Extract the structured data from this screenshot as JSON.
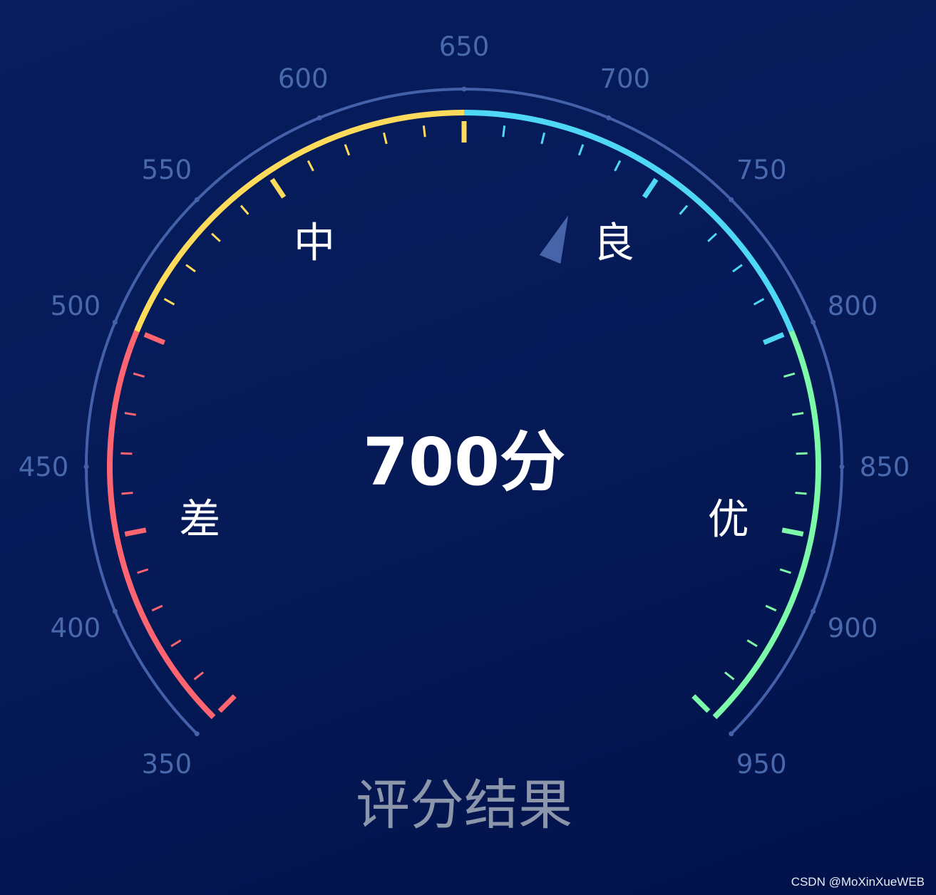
{
  "chart_data": {
    "type": "gauge",
    "min": 350,
    "max": 950,
    "value": 700,
    "value_text": "700分",
    "title": "评分结果",
    "axis_labels": [
      "350",
      "400",
      "450",
      "500",
      "550",
      "600",
      "650",
      "700",
      "750",
      "800",
      "850",
      "900",
      "950"
    ],
    "segments": [
      {
        "from": 350,
        "to": 500,
        "color": "#ff6471",
        "label": "差"
      },
      {
        "from": 500,
        "to": 650,
        "color": "#ffdb5c",
        "label": "中"
      },
      {
        "from": 650,
        "to": 800,
        "color": "#4fd8f6",
        "label": "良"
      },
      {
        "from": 800,
        "to": 950,
        "color": "#7cf9a9",
        "label": "优"
      }
    ],
    "outer_ring_color": "#4360a8",
    "label_color": "#4a69ad",
    "pointer_color": "#4864a8"
  },
  "watermark": "CSDN @MoXinXueWEB"
}
